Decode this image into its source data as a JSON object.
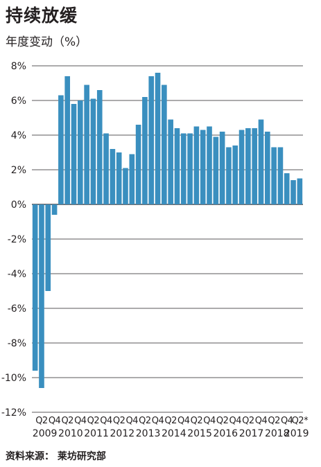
{
  "title": "持续放缓",
  "subtitle": "年度变动（%）",
  "source": "资料来源： 莱坊研究部",
  "colors": {
    "bar": "#3a8fbf",
    "grid": "#231f20",
    "text": "#231f20"
  },
  "chart_data": {
    "type": "bar",
    "title": "持续放缓",
    "ylabel": "年度变动（%）",
    "xlabel": "",
    "ylim": [
      -12,
      8
    ],
    "yticks": [
      8,
      6,
      4,
      2,
      0,
      -2,
      -4,
      -6,
      -8,
      -10,
      -12
    ],
    "ytick_labels": [
      "8%",
      "6%",
      "4%",
      "2%",
      "0%",
      "-2%",
      "-4%",
      "-6%",
      "-8%",
      "-10%",
      "-12%"
    ],
    "grid": true,
    "categories": [
      "2009Q1",
      "2009Q2",
      "2009Q3",
      "2009Q4",
      "2010Q1",
      "2010Q2",
      "2010Q3",
      "2010Q4",
      "2011Q1",
      "2011Q2",
      "2011Q3",
      "2011Q4",
      "2012Q1",
      "2012Q2",
      "2012Q3",
      "2012Q4",
      "2013Q1",
      "2013Q2",
      "2013Q3",
      "2013Q4",
      "2014Q1",
      "2014Q2",
      "2014Q3",
      "2014Q4",
      "2015Q1",
      "2015Q2",
      "2015Q3",
      "2015Q4",
      "2016Q1",
      "2016Q2",
      "2016Q3",
      "2016Q4",
      "2017Q1",
      "2017Q2",
      "2017Q3",
      "2017Q4",
      "2018Q1",
      "2018Q2",
      "2018Q3",
      "2018Q4",
      "2019Q1",
      "2019Q2"
    ],
    "values": [
      -9.6,
      -10.6,
      -5.0,
      -0.6,
      6.3,
      7.4,
      5.8,
      6.0,
      6.9,
      6.1,
      6.6,
      4.1,
      3.2,
      3.0,
      2.1,
      2.9,
      4.6,
      6.2,
      7.4,
      7.6,
      6.9,
      4.9,
      4.4,
      4.1,
      4.1,
      4.5,
      4.3,
      4.5,
      3.9,
      4.2,
      3.3,
      3.4,
      4.3,
      4.4,
      4.4,
      4.9,
      4.2,
      3.3,
      3.3,
      1.8,
      1.4,
      1.5
    ],
    "quarter_labels": [
      "Q2",
      "Q4",
      "Q2",
      "Q4",
      "Q2",
      "Q4",
      "Q2",
      "Q4",
      "Q2",
      "Q4",
      "Q2",
      "Q4",
      "Q2",
      "Q4",
      "Q2",
      "Q4",
      "Q2",
      "Q4",
      "Q2",
      "Q4",
      "Q2*"
    ],
    "year_labels": [
      "2009",
      "2010",
      "2011",
      "2012",
      "2013",
      "2014",
      "2015",
      "2016",
      "2017",
      "2018",
      "2019"
    ]
  }
}
